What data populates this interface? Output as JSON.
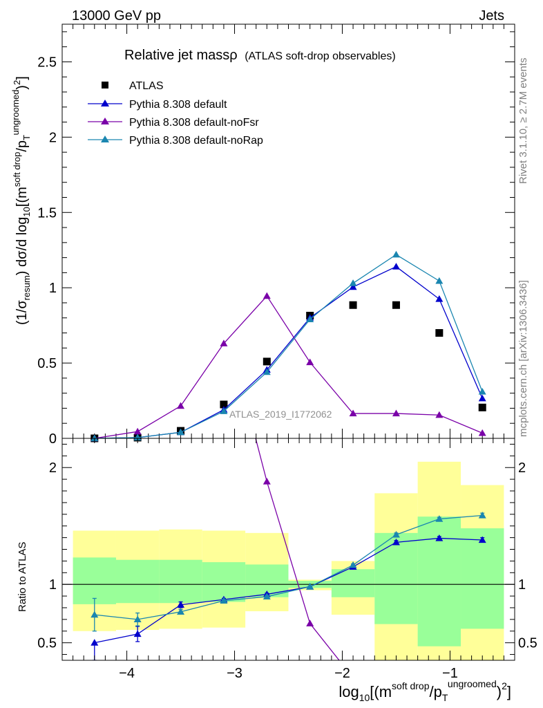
{
  "header": {
    "left": "13000 GeV pp",
    "right": "Jets"
  },
  "side_labels": {
    "rivet": "Rivet 3.1.10, ≥ 2.7M events",
    "mcplots": "mcplots.cern.ch [arXiv:1306.3436]"
  },
  "watermark": "ATLAS_2019_I1772062",
  "title": {
    "main": "Relative jet massρ",
    "sub": "(ATLAS soft-drop observables)"
  },
  "colors": {
    "atlas": "#000000",
    "default": "#0000cc",
    "noFsr": "#7a00a8",
    "noRap": "#1a86b0",
    "band_outer": "#ffff99",
    "band_inner": "#99ff99"
  },
  "chart_data": [
    {
      "type": "scatter",
      "title": "Relative jet massρ (ATLAS soft-drop observables)",
      "ylabel": "(1/σresum) dσ/d log10[(m^soft drop/pT^ungroomed)^2]",
      "xlim": [
        -4.6,
        -0.4
      ],
      "ylim": [
        0,
        2.75
      ],
      "yticks": [
        0,
        0.5,
        1,
        1.5,
        2,
        2.5
      ],
      "ytick_labels": [
        "0",
        "0.5",
        "1",
        "1.5",
        "2",
        "2.5"
      ],
      "legend_position": "top-left",
      "x": [
        -4.3,
        -3.9,
        -3.5,
        -3.1,
        -2.7,
        -2.3,
        -1.9,
        -1.5,
        -1.1,
        -0.7
      ],
      "series": [
        {
          "name": "ATLAS",
          "key": "atlas",
          "marker": "square",
          "values": [
            0.0,
            0.005,
            0.05,
            0.225,
            0.51,
            0.815,
            0.885,
            0.885,
            0.7,
            0.205
          ]
        },
        {
          "name": "Pythia 8.308 default",
          "key": "default",
          "marker": "triangle",
          "values": [
            0.0,
            0.005,
            0.04,
            0.19,
            0.455,
            0.8,
            1.005,
            1.14,
            0.925,
            0.265
          ]
        },
        {
          "name": "Pythia 8.308 default-noFsr",
          "key": "noFsr",
          "marker": "triangle",
          "values": [
            0.0,
            0.045,
            0.215,
            0.63,
            0.945,
            0.505,
            0.165,
            0.165,
            0.155,
            0.035
          ]
        },
        {
          "name": "Pythia 8.308 default-noRap",
          "key": "noRap",
          "marker": "triangle",
          "values": [
            0.0,
            0.005,
            0.04,
            0.18,
            0.44,
            0.79,
            1.03,
            1.22,
            1.045,
            0.31
          ]
        }
      ]
    },
    {
      "type": "line",
      "ylabel": "Ratio to ATLAS",
      "xlabel": "log10[(m^soft drop/pT^ungroomed)^2]",
      "xlim": [
        -4.6,
        -0.4
      ],
      "ylim": [
        0.35,
        2.25
      ],
      "yticks": [
        0.5,
        1,
        2
      ],
      "ytick_labels": [
        "0.5",
        "1",
        "2"
      ],
      "xticks": [
        -4,
        -3,
        -2,
        -1
      ],
      "xtick_labels": [
        "−4",
        "−3",
        "−2",
        "−1"
      ],
      "reference_line": 1,
      "bin_edges": [
        -4.5,
        -4.1,
        -3.7,
        -3.3,
        -2.9,
        -2.5,
        -2.1,
        -1.7,
        -1.3,
        -0.9,
        -0.5
      ],
      "band_outer": [
        [
          0.6,
          1.46
        ],
        [
          0.61,
          1.46
        ],
        [
          0.62,
          1.47
        ],
        [
          0.63,
          1.46
        ],
        [
          0.77,
          1.44
        ],
        [
          0.95,
          1.04
        ],
        [
          0.74,
          1.2
        ],
        [
          0.35,
          1.78
        ],
        [
          0.35,
          2.05
        ],
        [
          0.35,
          1.85
        ]
      ],
      "band_inner": [
        [
          0.83,
          1.23
        ],
        [
          0.84,
          1.21
        ],
        [
          0.84,
          1.21
        ],
        [
          0.85,
          1.19
        ],
        [
          0.89,
          1.17
        ],
        [
          0.97,
          1.03
        ],
        [
          0.89,
          1.13
        ],
        [
          0.66,
          1.44
        ],
        [
          0.47,
          1.58
        ],
        [
          0.62,
          1.48
        ]
      ],
      "x": [
        -4.3,
        -3.9,
        -3.5,
        -3.1,
        -2.7,
        -2.3,
        -1.9,
        -1.5,
        -1.1,
        -0.7
      ],
      "series": [
        {
          "name": "Pythia 8.308 default",
          "key": "default",
          "values": [
            0.5,
            0.575,
            0.825,
            0.87,
            0.915,
            0.98,
            1.15,
            1.36,
            1.395,
            1.38
          ],
          "err_low": [
            0.15,
            0.065,
            0.025,
            0.01,
            0.01,
            0.005,
            0.01,
            0.015,
            0.015,
            0.02
          ],
          "err_high": [
            0.0,
            0.065,
            0.025,
            0.01,
            0.01,
            0.005,
            0.01,
            0.015,
            0.015,
            0.02
          ]
        },
        {
          "name": "Pythia 8.308 default-noFsr",
          "key": "noFsr",
          "values": [
            null,
            null,
            null,
            3.3,
            1.88,
            0.665,
            0.2,
            null,
            null,
            null
          ]
        },
        {
          "name": "Pythia 8.308 default-noRap",
          "key": "noRap",
          "values": [
            0.74,
            0.7,
            0.765,
            0.86,
            0.895,
            0.98,
            1.165,
            1.425,
            1.56,
            1.59
          ],
          "err_low": [
            0.14,
            0.055,
            0.02,
            0.01,
            0.01,
            0.005,
            0.01,
            0.015,
            0.015,
            0.02
          ],
          "err_high": [
            0.14,
            0.055,
            0.02,
            0.01,
            0.01,
            0.005,
            0.01,
            0.015,
            0.015,
            0.02
          ]
        }
      ]
    }
  ]
}
